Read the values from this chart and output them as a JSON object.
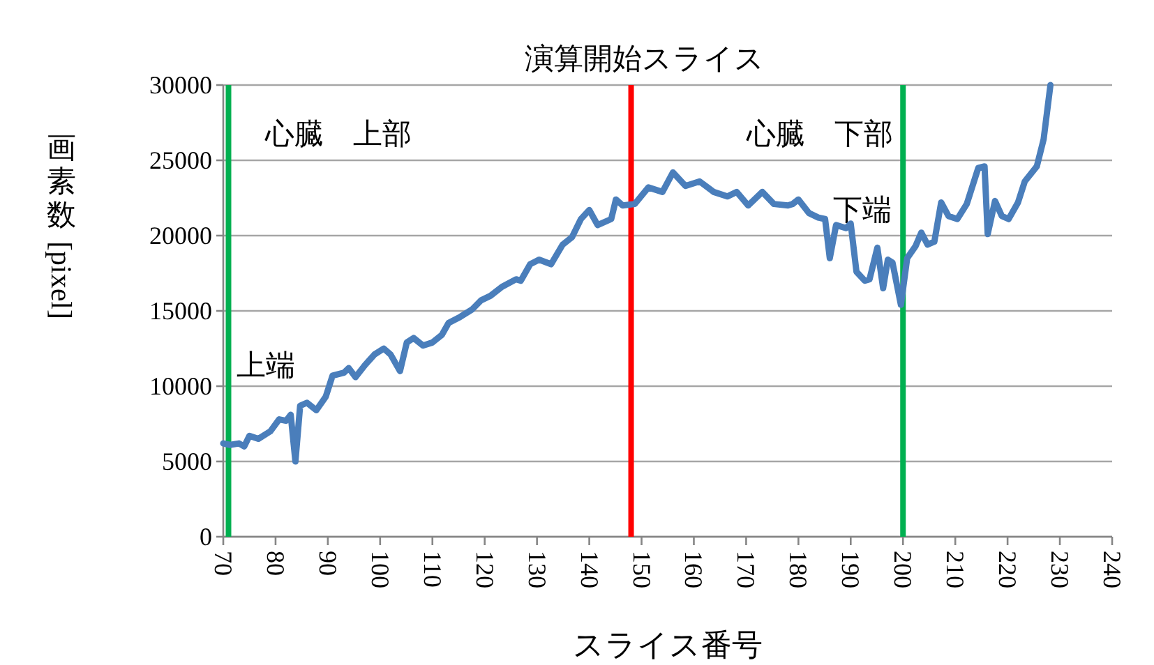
{
  "chart_data": {
    "type": "line",
    "title": "演算開始スライス",
    "xlabel": "スライス番号",
    "ylabel": "画素数[pixel]",
    "xlim": [
      70,
      240
    ],
    "xticks": [
      70,
      80,
      90,
      100,
      110,
      120,
      130,
      140,
      150,
      160,
      170,
      180,
      190,
      200,
      210,
      220,
      230,
      240
    ],
    "ylim": [
      0,
      30000
    ],
    "yticks": [
      0,
      5000,
      10000,
      15000,
      20000,
      25000,
      30000
    ],
    "grid": "y",
    "series": [
      {
        "color": "#4a7ebb",
        "x": [
          70,
          71.3,
          73,
          74,
          75,
          76.7,
          79,
          80.7,
          82,
          82.9,
          83.8,
          84.7,
          86,
          87.8,
          89.6,
          90.9,
          93.1,
          94,
          95.3,
          97.1,
          98.9,
          100.7,
          102,
          103.8,
          105.1,
          106.4,
          108.2,
          110,
          111.8,
          113.1,
          115.3,
          117.6,
          119.3,
          121.1,
          123.3,
          126,
          126.9,
          128.7,
          130.4,
          132.7,
          134.9,
          136.7,
          138.4,
          140,
          141.6,
          144.2,
          145.1,
          146.4,
          148.7,
          151.3,
          154,
          156,
          158.4,
          161.1,
          163.8,
          166.4,
          168.2,
          170.4,
          173.1,
          175.3,
          178,
          178.9,
          180,
          182,
          183.8,
          185.1,
          186,
          187.2,
          189.1,
          190,
          191.1,
          192.7,
          193.6,
          195.1,
          196.2,
          197.1,
          198,
          199.6,
          200.8,
          202.4,
          203.5,
          204.7,
          206,
          207.3,
          208.7,
          210.4,
          212.2,
          214.4,
          215.6,
          216.2,
          217.6,
          218.9,
          220.2,
          222,
          223.3,
          225.6,
          226.9,
          228.2
        ],
        "values": [
          6200,
          6100,
          6200,
          6000,
          6700,
          6500,
          7000,
          7800,
          7700,
          8100,
          5000,
          8700,
          8900,
          8400,
          9300,
          10700,
          10900,
          11200,
          10600,
          11400,
          12100,
          12500,
          12100,
          11000,
          12900,
          13200,
          12700,
          12900,
          13400,
          14200,
          14600,
          15100,
          15700,
          16000,
          16600,
          17100,
          17000,
          18100,
          18400,
          18100,
          19400,
          19900,
          21100,
          21700,
          20700,
          21100,
          22400,
          22000,
          22100,
          23200,
          22900,
          24200,
          23300,
          23600,
          22900,
          22600,
          22900,
          22000,
          22900,
          22100,
          22000,
          22100,
          22400,
          21500,
          21200,
          21100,
          18500,
          20700,
          20500,
          20800,
          17600,
          17000,
          17100,
          19200,
          16500,
          18400,
          18200,
          15400,
          18500,
          19300,
          20200,
          19400,
          19600,
          22200,
          21300,
          21100,
          22100,
          24500,
          24600,
          20100,
          22300,
          21300,
          21100,
          22200,
          23600,
          24600,
          26400,
          30000
        ]
      }
    ],
    "ref_lines": [
      {
        "axis": "x",
        "value": 148,
        "color": "#ff0000"
      },
      {
        "axis": "x",
        "value": 71,
        "label": "上端",
        "color": "#00b050"
      },
      {
        "axis": "x",
        "value": 200,
        "label": "下端",
        "color": "#00b050"
      }
    ],
    "annotations": [
      "心臓　上部",
      "心臓　下部"
    ]
  }
}
